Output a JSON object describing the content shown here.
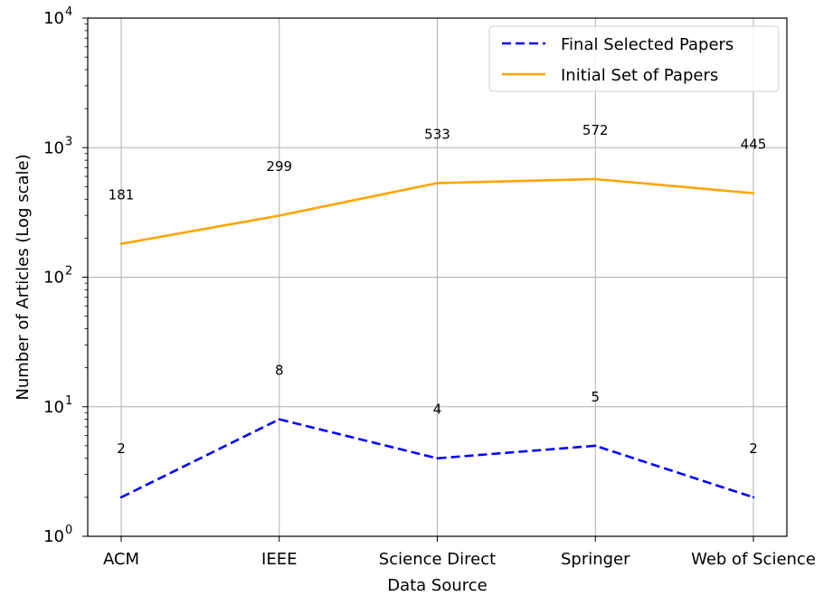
{
  "chart_data": {
    "type": "line",
    "xlabel": "Data Source",
    "ylabel": "Number of Articles (Log scale)",
    "y_scale": "log",
    "ylim": [
      1,
      10000
    ],
    "y_ticks": [
      {
        "base": "10",
        "exp": "0"
      },
      {
        "base": "10",
        "exp": "1"
      },
      {
        "base": "10",
        "exp": "2"
      },
      {
        "base": "10",
        "exp": "3"
      },
      {
        "base": "10",
        "exp": "4"
      }
    ],
    "categories": [
      "ACM",
      "IEEE",
      "Science Direct",
      "Springer",
      "Web of Science"
    ],
    "grid": true,
    "legend_position": "top-right",
    "series": [
      {
        "name": "Final Selected Papers",
        "values": [
          2,
          8,
          4,
          5,
          2
        ],
        "labels": [
          "2",
          "8",
          "4",
          "5",
          "2"
        ],
        "color": "#0000ff",
        "line_style": "dashed"
      },
      {
        "name": "Initial Set of Papers",
        "values": [
          181,
          299,
          533,
          572,
          445
        ],
        "labels": [
          "181",
          "299",
          "533",
          "572",
          "445"
        ],
        "color": "#ffa500",
        "line_style": "solid"
      }
    ]
  }
}
